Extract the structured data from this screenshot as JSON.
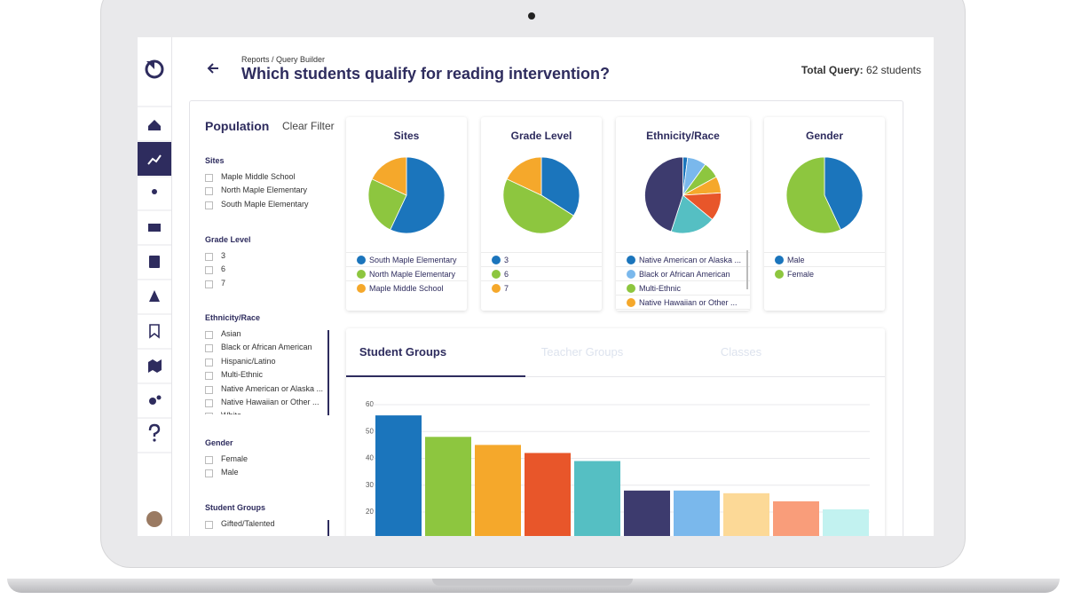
{
  "header": {
    "breadcrumb": "Reports / Query Builder",
    "title": "Which students qualify for reading intervention?",
    "total_label": "Total Query:",
    "total_value": "62 students"
  },
  "filters": {
    "title": "Population",
    "clear": "Clear Filter",
    "groups": [
      {
        "name": "Sites",
        "options": [
          "Maple Middle School",
          "North Maple Elementary",
          "South Maple Elementary"
        ]
      },
      {
        "name": "Grade Level",
        "options": [
          "3",
          "6",
          "7"
        ]
      },
      {
        "name": "Ethnicity/Race",
        "options": [
          "Asian",
          "Black or African American",
          "Hispanic/Latino",
          "Multi-Ethnic",
          "Native American or Alaska ...",
          "Native Hawaiian or Other ...",
          "White"
        ]
      },
      {
        "name": "Gender",
        "options": [
          "Female",
          "Male"
        ]
      },
      {
        "name": "Student Groups",
        "options": [
          "Gifted/Talented"
        ]
      }
    ]
  },
  "tabs": [
    "Student Groups",
    "Teacher Groups",
    "Classes"
  ],
  "chart_data": [
    {
      "type": "pie",
      "title": "Sites",
      "categories": [
        "South Maple Elementary",
        "North Maple Elementary",
        "Maple Middle School"
      ],
      "values": [
        57,
        25,
        18
      ],
      "colors": [
        "#1b75bc",
        "#8dc63f",
        "#f5a82b"
      ]
    },
    {
      "type": "pie",
      "title": "Grade Level",
      "categories": [
        "3",
        "6",
        "7"
      ],
      "values": [
        34,
        48,
        18
      ],
      "colors": [
        "#1b75bc",
        "#8dc63f",
        "#f5a82b"
      ]
    },
    {
      "type": "pie",
      "title": "Ethnicity/Race",
      "categories": [
        "Native American or Alaska ...",
        "Black or African American",
        "Multi-Ethnic",
        "Native Hawaiian or Other ...",
        "Asian",
        "Hispanic/Latino",
        "White"
      ],
      "values": [
        2,
        8,
        7,
        7,
        12,
        19,
        45
      ],
      "colors": [
        "#1b75bc",
        "#7ab8ec",
        "#8dc63f",
        "#f5a82b",
        "#e8562a",
        "#55bfc3",
        "#3d3b6e"
      ]
    },
    {
      "type": "pie",
      "title": "Gender",
      "categories": [
        "Male",
        "Female"
      ],
      "values": [
        43,
        57
      ],
      "colors": [
        "#1b75bc",
        "#8dc63f"
      ]
    },
    {
      "type": "bar",
      "values": [
        56,
        48,
        45,
        42,
        39,
        28,
        28,
        27,
        24,
        21
      ],
      "colors": [
        "#1b75bc",
        "#8dc63f",
        "#f5a82b",
        "#e8562a",
        "#55bfc3",
        "#3d3b6e",
        "#7ab8ec",
        "#fcd997",
        "#f99d7a",
        "#c2f2f0"
      ],
      "ylim": [
        0,
        60
      ],
      "yticks": [
        20,
        30,
        40,
        50,
        60
      ],
      "grid": true
    }
  ]
}
